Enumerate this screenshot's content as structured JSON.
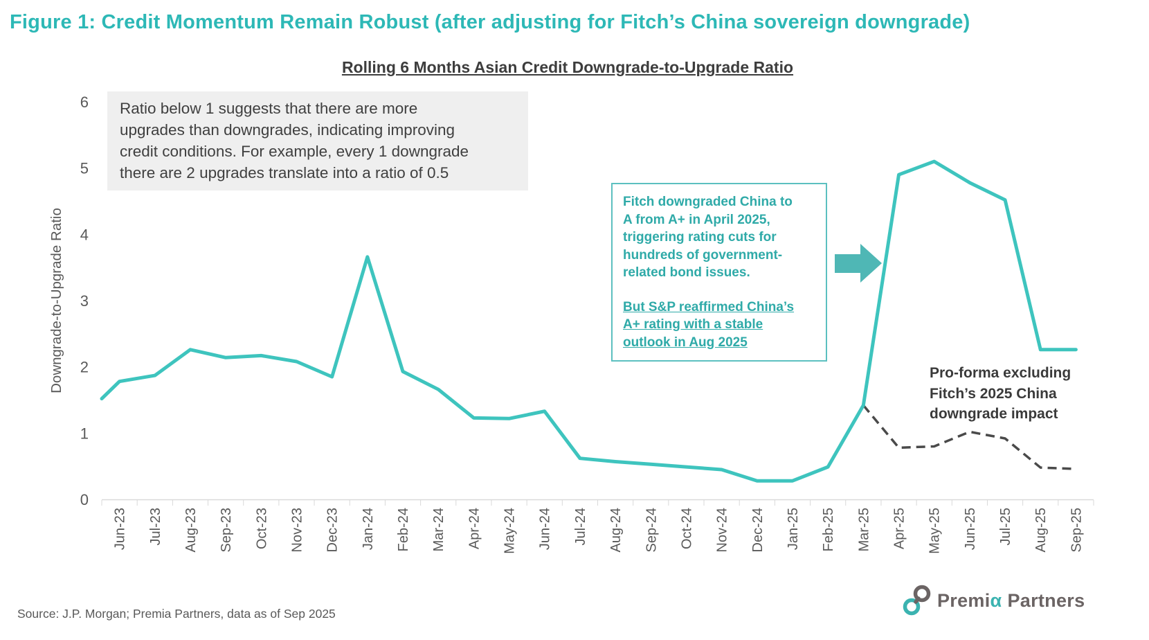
{
  "header": {
    "title": "Figure 1: Credit Momentum Remain Robust (after adjusting for Fitch’s China sovereign downgrade)",
    "subtitle": "Rolling 6 Months Asian Credit Downgrade-to-Upgrade Ratio"
  },
  "annotations": {
    "explainer": {
      "lines": [
        "Ratio below 1 suggests that there are more",
        "upgrades than downgrades, indicating improving",
        "credit conditions. For example, every 1 downgrade",
        "there are 2 upgrades translate into a ratio of 0.5"
      ]
    },
    "fitch_callout": {
      "para1_lines": [
        "Fitch downgraded China to",
        "A from A+ in April 2025,",
        "triggering rating cuts for",
        "hundreds of government-",
        "related bond issues."
      ],
      "para2_lines": [
        "But S&P reaffirmed China’s",
        "A+ rating with a stable",
        "outlook in Aug 2025"
      ]
    },
    "proforma_label": {
      "lines": [
        "Pro-forma excluding",
        "Fitch’s 2025 China",
        "downgrade impact"
      ]
    }
  },
  "chart_data": {
    "type": "line",
    "title": "Rolling 6 Months Asian Credit Downgrade-to-Upgrade Ratio",
    "ylabel": "Downgrade-to-Upgrade Ratio",
    "xlabel": "",
    "ylim": [
      0,
      6
    ],
    "y_ticks": [
      0,
      1,
      2,
      3,
      4,
      5,
      6
    ],
    "grid": false,
    "legend_position": "none",
    "categories": [
      "Jun-23",
      "Jul-23",
      "Aug-23",
      "Sep-23",
      "Oct-23",
      "Nov-23",
      "Dec-23",
      "Jan-24",
      "Feb-24",
      "Mar-24",
      "Apr-24",
      "May-24",
      "Jun-24",
      "Jul-24",
      "Aug-24",
      "Sep-24",
      "Oct-24",
      "Nov-24",
      "Dec-24",
      "Jan-25",
      "Feb-25",
      "Mar-25",
      "Apr-25",
      "May-25",
      "Jun-25",
      "Jul-25",
      "Aug-25",
      "Sep-25"
    ],
    "series": [
      {
        "id": "reported_ratio",
        "style": "solid",
        "color": "#3ec4be",
        "left_edge_value": 1.52,
        "values": [
          1.78,
          1.87,
          2.26,
          2.14,
          2.17,
          2.08,
          1.85,
          3.66,
          1.93,
          1.66,
          1.23,
          1.22,
          1.33,
          0.62,
          0.57,
          0.53,
          0.49,
          0.45,
          0.28,
          0.28,
          0.49,
          1.42,
          4.9,
          5.1,
          4.78,
          4.52,
          2.26,
          2.26
        ]
      },
      {
        "id": "proforma_ratio",
        "label": "Pro-forma excluding Fitch’s 2025 China downgrade impact",
        "style": "dashed",
        "color": "#4a4a4a",
        "values": [
          null,
          null,
          null,
          null,
          null,
          null,
          null,
          null,
          null,
          null,
          null,
          null,
          null,
          null,
          null,
          null,
          null,
          null,
          null,
          null,
          null,
          1.42,
          0.78,
          0.8,
          1.02,
          0.92,
          0.48,
          0.46
        ]
      }
    ]
  },
  "colors": {
    "accent_teal": "#2db8b6",
    "line_teal": "#3ec4be",
    "callout_teal": "#2faaa8",
    "arrow_teal": "#4fb7b5",
    "dash_gray": "#4a4a4a",
    "axis_gray": "#595959",
    "axis_line_gray": "#d9d9d9",
    "explainer_bg": "#efefef"
  },
  "footer": {
    "source": "Source: J.P. Morgan; Premia Partners, data as of Sep 2025",
    "logo": {
      "part1": "Premi",
      "alpha": "α",
      "part2": "Partners"
    }
  }
}
